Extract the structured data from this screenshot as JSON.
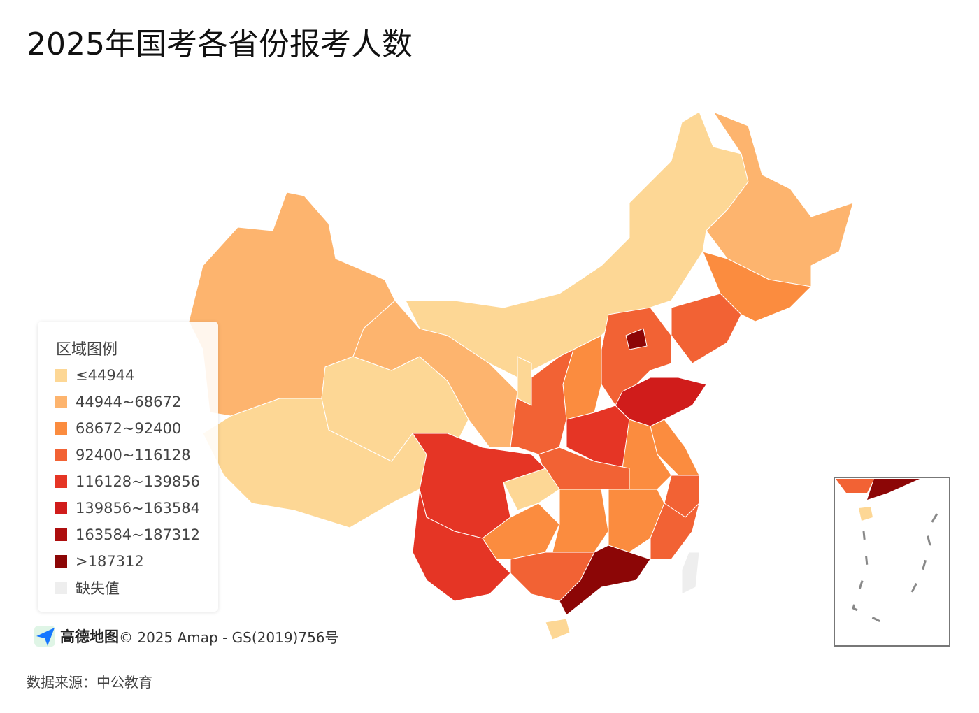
{
  "title": "2025年国考各省份报考人数",
  "legend": {
    "title": "区域图例",
    "items": [
      {
        "label": "≤44944",
        "color": "#fdd795"
      },
      {
        "label": "44944~68672",
        "color": "#fdb46e"
      },
      {
        "label": "68672~92400",
        "color": "#fb8c3f"
      },
      {
        "label": "92400~116128",
        "color": "#f26234"
      },
      {
        "label": "116128~139856",
        "color": "#e53525"
      },
      {
        "label": "139856~163584",
        "color": "#d01c1b"
      },
      {
        "label": "163584~187312",
        "color": "#ad0e0e"
      },
      {
        "label": ">187312",
        "color": "#8c0606"
      },
      {
        "label": "缺失值",
        "color": "#eeeeee"
      }
    ]
  },
  "logo": "高德地图",
  "attribution": "© 2025 Amap - GS(2019)756号",
  "source": "数据来源：中公教育"
}
